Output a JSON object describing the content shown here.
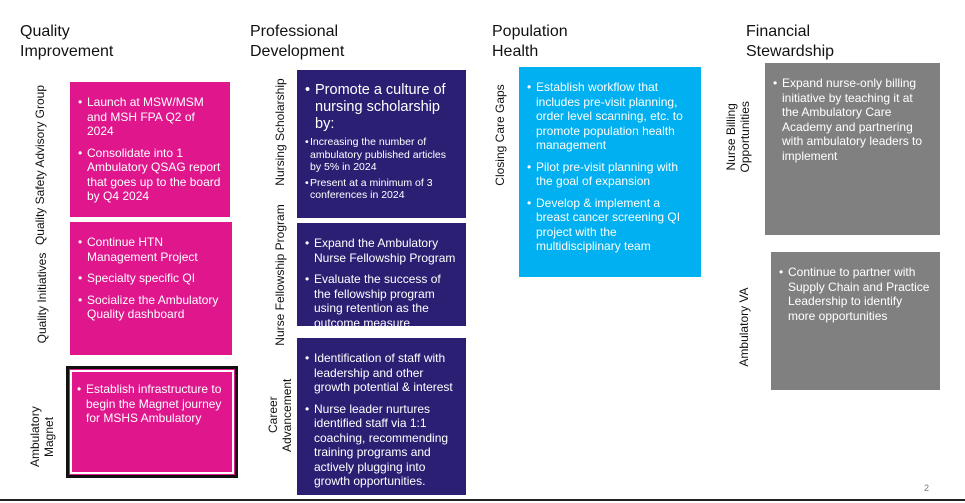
{
  "columns": [
    {
      "title": "Quality Improvement",
      "sections": [
        {
          "label": "Quality Safety Advisory Group",
          "bullets": [
            "Launch at MSW/MSM and MSH FPA Q2 of 2024",
            "Consolidate into 1 Ambulatory QSAG report that goes up to the board by Q4 2024"
          ]
        },
        {
          "label": "Quality Initiatives",
          "bullets": [
            "Continue HTN Management Project",
            "Specialty specific QI",
            "Socialize the Ambulatory Quality dashboard"
          ]
        },
        {
          "label": "Ambulatory Magnet",
          "bullets": [
            "Establish infrastructure to begin the Magnet journey for MSHS Ambulatory"
          ]
        }
      ]
    },
    {
      "title": "Professional Development",
      "sections": [
        {
          "label": "Nursing Scholarship",
          "lead": "Promote a culture of nursing scholarship by:",
          "bullets": [
            "Increasing the number of ambulatory published articles by 5% in 2024",
            "Present at a minimum of 3 conferences in 2024"
          ]
        },
        {
          "label": "Nurse Fellowship Program",
          "bullets": [
            "Expand the Ambulatory Nurse Fellowship Program",
            "Evaluate the success of the fellowship program using retention as the outcome measure"
          ]
        },
        {
          "label": "Career Advancement",
          "bullets": [
            "Identification of staff with leadership and other growth potential & interest",
            "Nurse leader nurtures identified staff via 1:1 coaching, recommending training programs and actively plugging into growth opportunities."
          ]
        }
      ]
    },
    {
      "title": "Population Health",
      "sections": [
        {
          "label": "Closing Care Gaps",
          "bullets": [
            "Establish workflow that includes pre-visit planning, order level scanning, etc. to promote population health management",
            "Pilot pre-visit planning with the goal of expansion",
            "Develop & implement a breast cancer screening QI project with the multidisciplinary team"
          ]
        }
      ]
    },
    {
      "title": "Financial Stewardship",
      "sections": [
        {
          "label": "Nurse Billing Opportunities",
          "bullets": [
            "Expand nurse-only billing initiative by teaching it at the Ambulatory Care Academy and partnering with ambulatory leaders to implement"
          ]
        },
        {
          "label": "Ambulatory VA",
          "bullets": [
            "Continue to partner with Supply Chain and Practice Leadership to identify more opportunities"
          ]
        }
      ]
    }
  ],
  "page_number": "2"
}
